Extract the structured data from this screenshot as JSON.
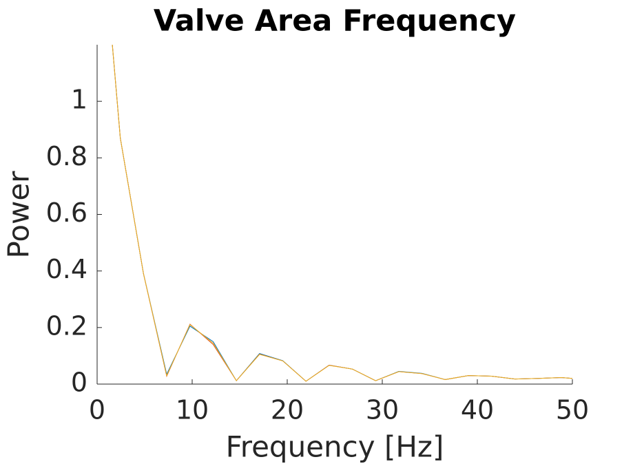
{
  "chart_data": {
    "type": "line",
    "title": "Valve Area Frequency",
    "x_label": "Frequency [Hz]",
    "y_label": "Power",
    "x": [
      0,
      2.44,
      4.88,
      7.32,
      9.77,
      12.21,
      14.65,
      17.09,
      19.53,
      21.97,
      24.41,
      26.86,
      29.3,
      31.74,
      34.18,
      36.62,
      39.06,
      41.5,
      43.95,
      46.39,
      48.83,
      50
    ],
    "series": [
      {
        "color": "#a2142f",
        "values": [
          0,
          0,
          0,
          0,
          0,
          0,
          0,
          0,
          0,
          0,
          0,
          0,
          0,
          0,
          0,
          0,
          0,
          0,
          0,
          0,
          0,
          0
        ]
      },
      {
        "color": "#0072bd",
        "values": [
          1.83,
          0.87,
          0.39,
          0.035,
          0.205,
          0.15,
          0.012,
          0.108,
          0.083,
          0.01,
          0.067,
          0.053,
          0.012,
          0.045,
          0.038,
          0.016,
          0.03,
          0.028,
          0.018,
          0.02,
          0.023,
          0.02
        ]
      },
      {
        "color": "#d95319",
        "values": [
          1.83,
          0.87,
          0.39,
          0.028,
          0.212,
          0.14,
          0.012,
          0.106,
          0.082,
          0.01,
          0.067,
          0.053,
          0.012,
          0.044,
          0.037,
          0.016,
          0.03,
          0.028,
          0.018,
          0.02,
          0.023,
          0.02
        ]
      },
      {
        "color": "#edb120",
        "values": [
          1.83,
          0.87,
          0.39,
          0.03,
          0.21,
          0.145,
          0.012,
          0.105,
          0.082,
          0.01,
          0.066,
          0.053,
          0.012,
          0.044,
          0.037,
          0.016,
          0.03,
          0.028,
          0.018,
          0.02,
          0.023,
          0.02
        ]
      }
    ],
    "xlim": [
      0,
      50
    ],
    "xticks": [
      0,
      10,
      20,
      30,
      40,
      50
    ],
    "ylim": [
      0,
      1.2
    ],
    "yticks": [
      0,
      0.2,
      0.4,
      0.6,
      0.8,
      1
    ],
    "grid": false
  }
}
